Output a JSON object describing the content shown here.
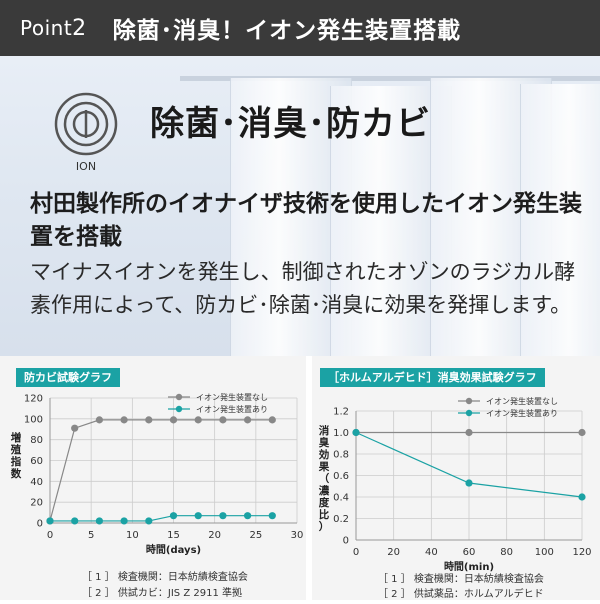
{
  "header": {
    "point_label": "Point",
    "point_number": "2",
    "title": "除菌･消臭！イオン発生装置搭載"
  },
  "hero": {
    "ion_label": "ION",
    "subtitle": "除菌･消臭･防カビ",
    "lead": "村田製作所のイオナイザ技術を使用したイオン発生装置を搭載",
    "body": "マイナスイオンを発生し、制御されたオゾンのラジカル酵素作用によって、防カビ･除菌･消臭に効果を発揮します。"
  },
  "colors": {
    "gray_series": "#888888",
    "teal_series": "#1ba2a4",
    "tag_bg": "#1ba2a4"
  },
  "chart_data": [
    {
      "type": "line",
      "title": "防カビ試験グラフ",
      "ylabel": "増殖指数",
      "xlabel": "時間(days)",
      "xlim": [
        0,
        30
      ],
      "ylim": [
        0,
        120
      ],
      "xticks": [
        0,
        5,
        10,
        15,
        20,
        25,
        30
      ],
      "yticks": [
        0,
        20,
        40,
        60,
        80,
        100,
        120
      ],
      "grid": true,
      "legend": "top-right",
      "series": [
        {
          "name": "イオン発生装置なし",
          "color": "#888888",
          "x": [
            0,
            3,
            6,
            9,
            12,
            15,
            18,
            21,
            24,
            27
          ],
          "y": [
            2,
            91,
            99,
            99,
            99,
            99,
            99,
            99,
            99,
            99
          ]
        },
        {
          "name": "イオン発生装置あり",
          "color": "#1ba2a4",
          "x": [
            0,
            3,
            6,
            9,
            12,
            15,
            18,
            21,
            24,
            27
          ],
          "y": [
            2,
            2,
            2,
            2,
            2,
            7,
            7,
            7,
            7,
            7
          ]
        }
      ],
      "notes": [
        "［ 1 ］ 検査機関：日本紡績検査協会",
        "［ 2 ］ 供試カビ：JIS Z 2911 準拠"
      ]
    },
    {
      "type": "line",
      "title": "［ホルムアルデヒド］消臭効果試験グラフ",
      "ylabel": "消臭効果（濃度比）",
      "xlabel": "時間(min)",
      "xlim": [
        0,
        120
      ],
      "ylim": [
        0,
        1.2
      ],
      "xticks": [
        0,
        20,
        40,
        60,
        80,
        100,
        120
      ],
      "yticks": [
        0,
        0.2,
        0.4,
        0.6,
        0.8,
        1.0,
        1.2
      ],
      "ytick_labels": [
        "0",
        "0.2",
        "0.4",
        "0.6",
        "0.8",
        "1.0",
        "1.2"
      ],
      "grid": true,
      "legend": "top-right",
      "series": [
        {
          "name": "イオン発生装置なし",
          "color": "#888888",
          "x": [
            0,
            60,
            120
          ],
          "y": [
            1.0,
            1.0,
            1.0
          ]
        },
        {
          "name": "イオン発生装置あり",
          "color": "#1ba2a4",
          "x": [
            0,
            60,
            120
          ],
          "y": [
            1.0,
            0.53,
            0.4
          ]
        }
      ],
      "notes": [
        "［ 1 ］ 検査機関：日本紡績検査協会",
        "［ 2 ］ 供試薬品：ホルムアルデヒド"
      ]
    }
  ]
}
